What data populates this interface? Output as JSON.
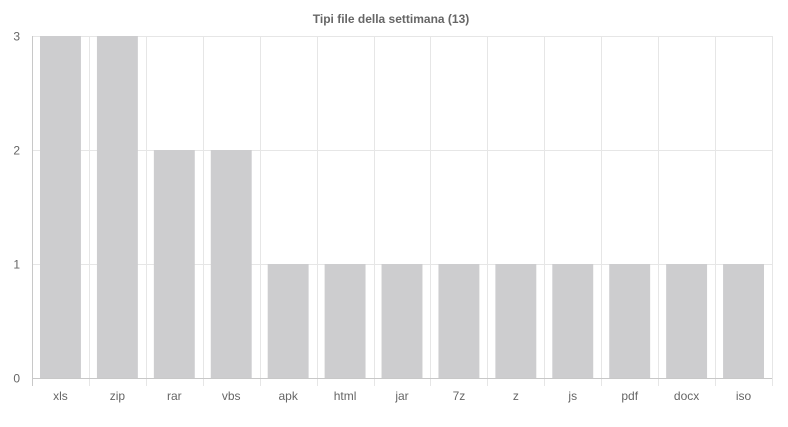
{
  "chart_data": {
    "type": "bar",
    "title": "Tipi file della settimana (13)",
    "xlabel": "",
    "ylabel": "",
    "categories": [
      "xls",
      "zip",
      "rar",
      "vbs",
      "apk",
      "html",
      "jar",
      "7z",
      "z",
      "js",
      "pdf",
      "docx",
      "iso"
    ],
    "values": [
      3,
      3,
      2,
      2,
      1,
      1,
      1,
      1,
      1,
      1,
      1,
      1,
      1
    ],
    "ylim": [
      0,
      3
    ],
    "yticks": [
      "0",
      "1",
      "2",
      "3"
    ],
    "grid": true,
    "legend": "none",
    "colors": {
      "bar": "#cdcdcf",
      "grid": "#e6e6e6",
      "axis": "#c8c8c8",
      "text": "#666666"
    }
  }
}
